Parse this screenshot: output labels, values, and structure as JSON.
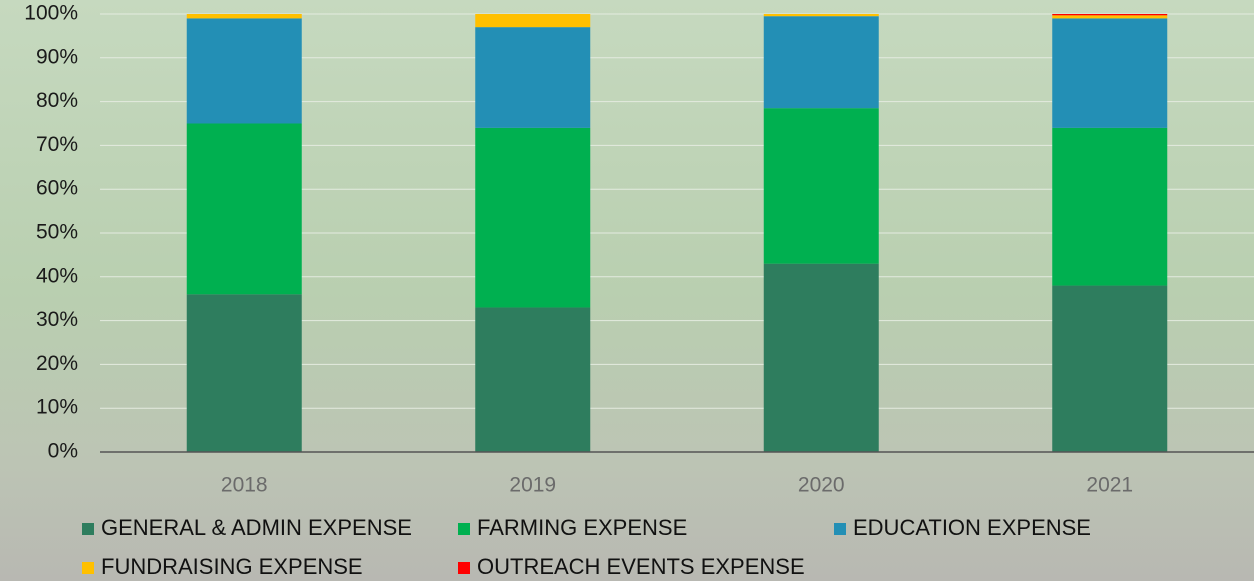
{
  "chart_data": {
    "type": "stacked_bar",
    "categories": [
      "2018",
      "2019",
      "2020",
      "2021"
    ],
    "series": [
      {
        "name": "GENERAL & ADMIN EXPENSE",
        "color": "#2e7d5e",
        "values": [
          36,
          33,
          43,
          38
        ]
      },
      {
        "name": "FARMING EXPENSE",
        "color": "#00b050",
        "values": [
          39,
          41,
          35.5,
          36
        ]
      },
      {
        "name": "EDUCATION EXPENSE",
        "color": "#238fb5",
        "values": [
          24,
          23,
          21,
          25
        ]
      },
      {
        "name": "FUNDRAISING EXPENSE",
        "color": "#ffc000",
        "values": [
          1,
          3,
          0.5,
          0.7
        ]
      },
      {
        "name": "OUTREACH EVENTS EXPENSE",
        "color": "#ff0000",
        "values": [
          0,
          0,
          0,
          0.3
        ]
      }
    ],
    "ylim": [
      0,
      100
    ],
    "yticks": [
      {
        "value": 0,
        "label": "0%"
      },
      {
        "value": 10,
        "label": "10%"
      },
      {
        "value": 20,
        "label": "20%"
      },
      {
        "value": 30,
        "label": "30%"
      },
      {
        "value": 40,
        "label": "40%"
      },
      {
        "value": 50,
        "label": "50%"
      },
      {
        "value": 60,
        "label": "60%"
      },
      {
        "value": 70,
        "label": "70%"
      },
      {
        "value": 80,
        "label": "80%"
      },
      {
        "value": 90,
        "label": "90%"
      },
      {
        "value": 100,
        "label": "100%"
      }
    ],
    "grid": true
  }
}
